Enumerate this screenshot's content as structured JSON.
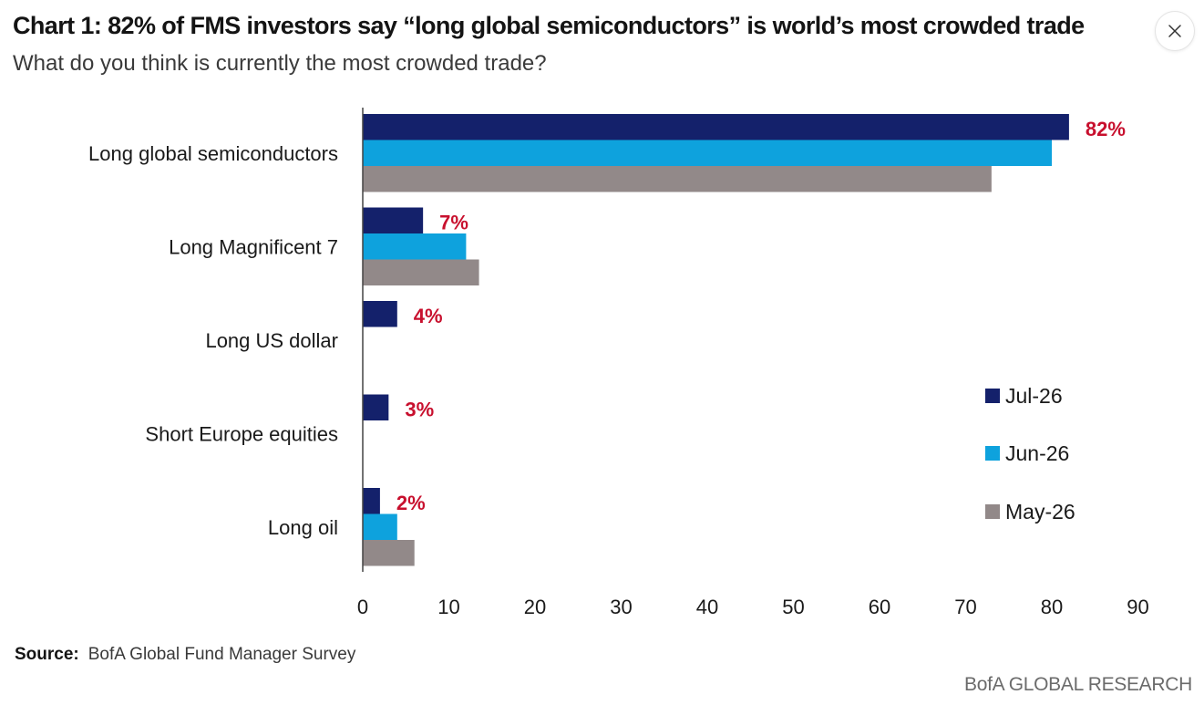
{
  "header": {
    "title": "Chart 1: 82% of FMS investors say “long global semiconductors” is world’s most crowded trade",
    "subtitle": "What do you think is currently the most crowded trade?",
    "close_icon": "close-icon"
  },
  "footer": {
    "source_label": "Source:",
    "source_text": "BofA Global Fund Manager Survey",
    "brand": "BofA GLOBAL RESEARCH"
  },
  "colors": {
    "Jul-26": "#14216b",
    "Jun-26": "#0ea2dd",
    "May-26": "#928989",
    "label_red": "#c8102e"
  },
  "chart_data": {
    "type": "bar",
    "orientation": "horizontal",
    "categories": [
      "Long global semiconductors",
      "Long Magnificent 7",
      "Long US dollar",
      "Short Europe equities",
      "Long oil"
    ],
    "series": [
      {
        "name": "Jul-26",
        "values": [
          82,
          7,
          4,
          3,
          2
        ]
      },
      {
        "name": "Jun-26",
        "values": [
          80,
          12,
          null,
          null,
          4
        ]
      },
      {
        "name": "May-26",
        "values": [
          73,
          13.5,
          null,
          null,
          6
        ]
      }
    ],
    "data_labels": [
      "82%",
      "7%",
      "4%",
      "3%",
      "2%"
    ],
    "x_ticks": [
      0,
      10,
      20,
      30,
      40,
      50,
      60,
      70,
      80,
      90
    ],
    "xlim": [
      0,
      90
    ],
    "grid": false,
    "legend_position": "right"
  }
}
